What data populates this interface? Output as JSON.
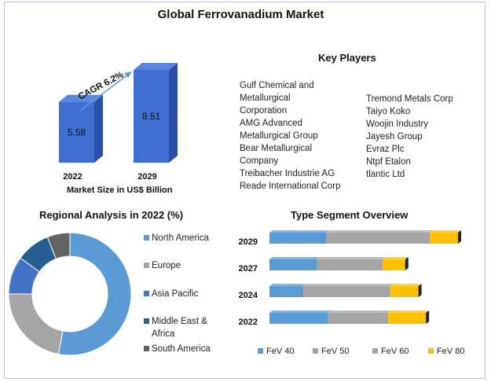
{
  "title": "Global Ferrovanadium Market",
  "market_size": {
    "caption": "Market Size in US$ Billion",
    "cagr_label": "CAGR 6.2%"
  },
  "key_players": {
    "title": "Key Players",
    "left": [
      "Gulf Chemical and",
      "Metallurgical",
      "Corporation",
      "AMG Advanced",
      "Metallurgical Group",
      "Bear Metallurgical",
      "Company",
      "Treibacher Industrie AG",
      "Reade International Corp"
    ],
    "right": [
      "Tremond Metals Corp",
      "Taiyo Koko",
      "Woojin Industry",
      "Jayesh Group",
      "Evraz Plc",
      "Ntpf Etalon",
      "tlantic Ltd"
    ]
  },
  "regional": {
    "title": "Regional Analysis in 2022 (%)"
  },
  "type_segment": {
    "title": "Type Segment Overview"
  },
  "colors": {
    "bar3d_front": "#3f6fd1",
    "bar3d_side": "#2a4fa6",
    "bar3d_top": "#5a86e0",
    "north_america": "#5b9bd5",
    "europe": "#a5a5a5",
    "asia_pacific": "#4472c4",
    "middle_east_africa": "#255e91",
    "south_america": "#636363",
    "fev40": "#5b9bd5",
    "fev50": "#a5a5a5",
    "fev60": "#a5a5a5",
    "fev80": "#ffc000"
  },
  "chart_data": [
    {
      "type": "bar",
      "categories": [
        "2022",
        "2029"
      ],
      "values": [
        5.58,
        8.51
      ],
      "xlabel": "Market Size in US$ Billion",
      "annotation": "CAGR 6.2%"
    },
    {
      "type": "pie",
      "title": "Regional Analysis in 2022 (%)",
      "categories": [
        "North America",
        "Europe",
        "Asia Pacific",
        "Middle East & Africa",
        "South America"
      ],
      "values": [
        53,
        22,
        10,
        9,
        6
      ],
      "legend": "right"
    },
    {
      "type": "bar",
      "title": "Type Segment Overview",
      "orientation": "horizontal",
      "stacked": true,
      "categories": [
        "2029",
        "2027",
        "2024",
        "2022"
      ],
      "series": [
        {
          "name": "FeV 40",
          "values": [
            30,
            25,
            18,
            31
          ]
        },
        {
          "name": "FeV 50",
          "values": [
            55,
            35,
            46,
            32
          ]
        },
        {
          "name": "FeV 60",
          "values": [
            0,
            0,
            0,
            0
          ]
        },
        {
          "name": "FeV 80",
          "values": [
            15,
            12,
            15,
            20
          ]
        }
      ],
      "legend": "bottom"
    }
  ]
}
